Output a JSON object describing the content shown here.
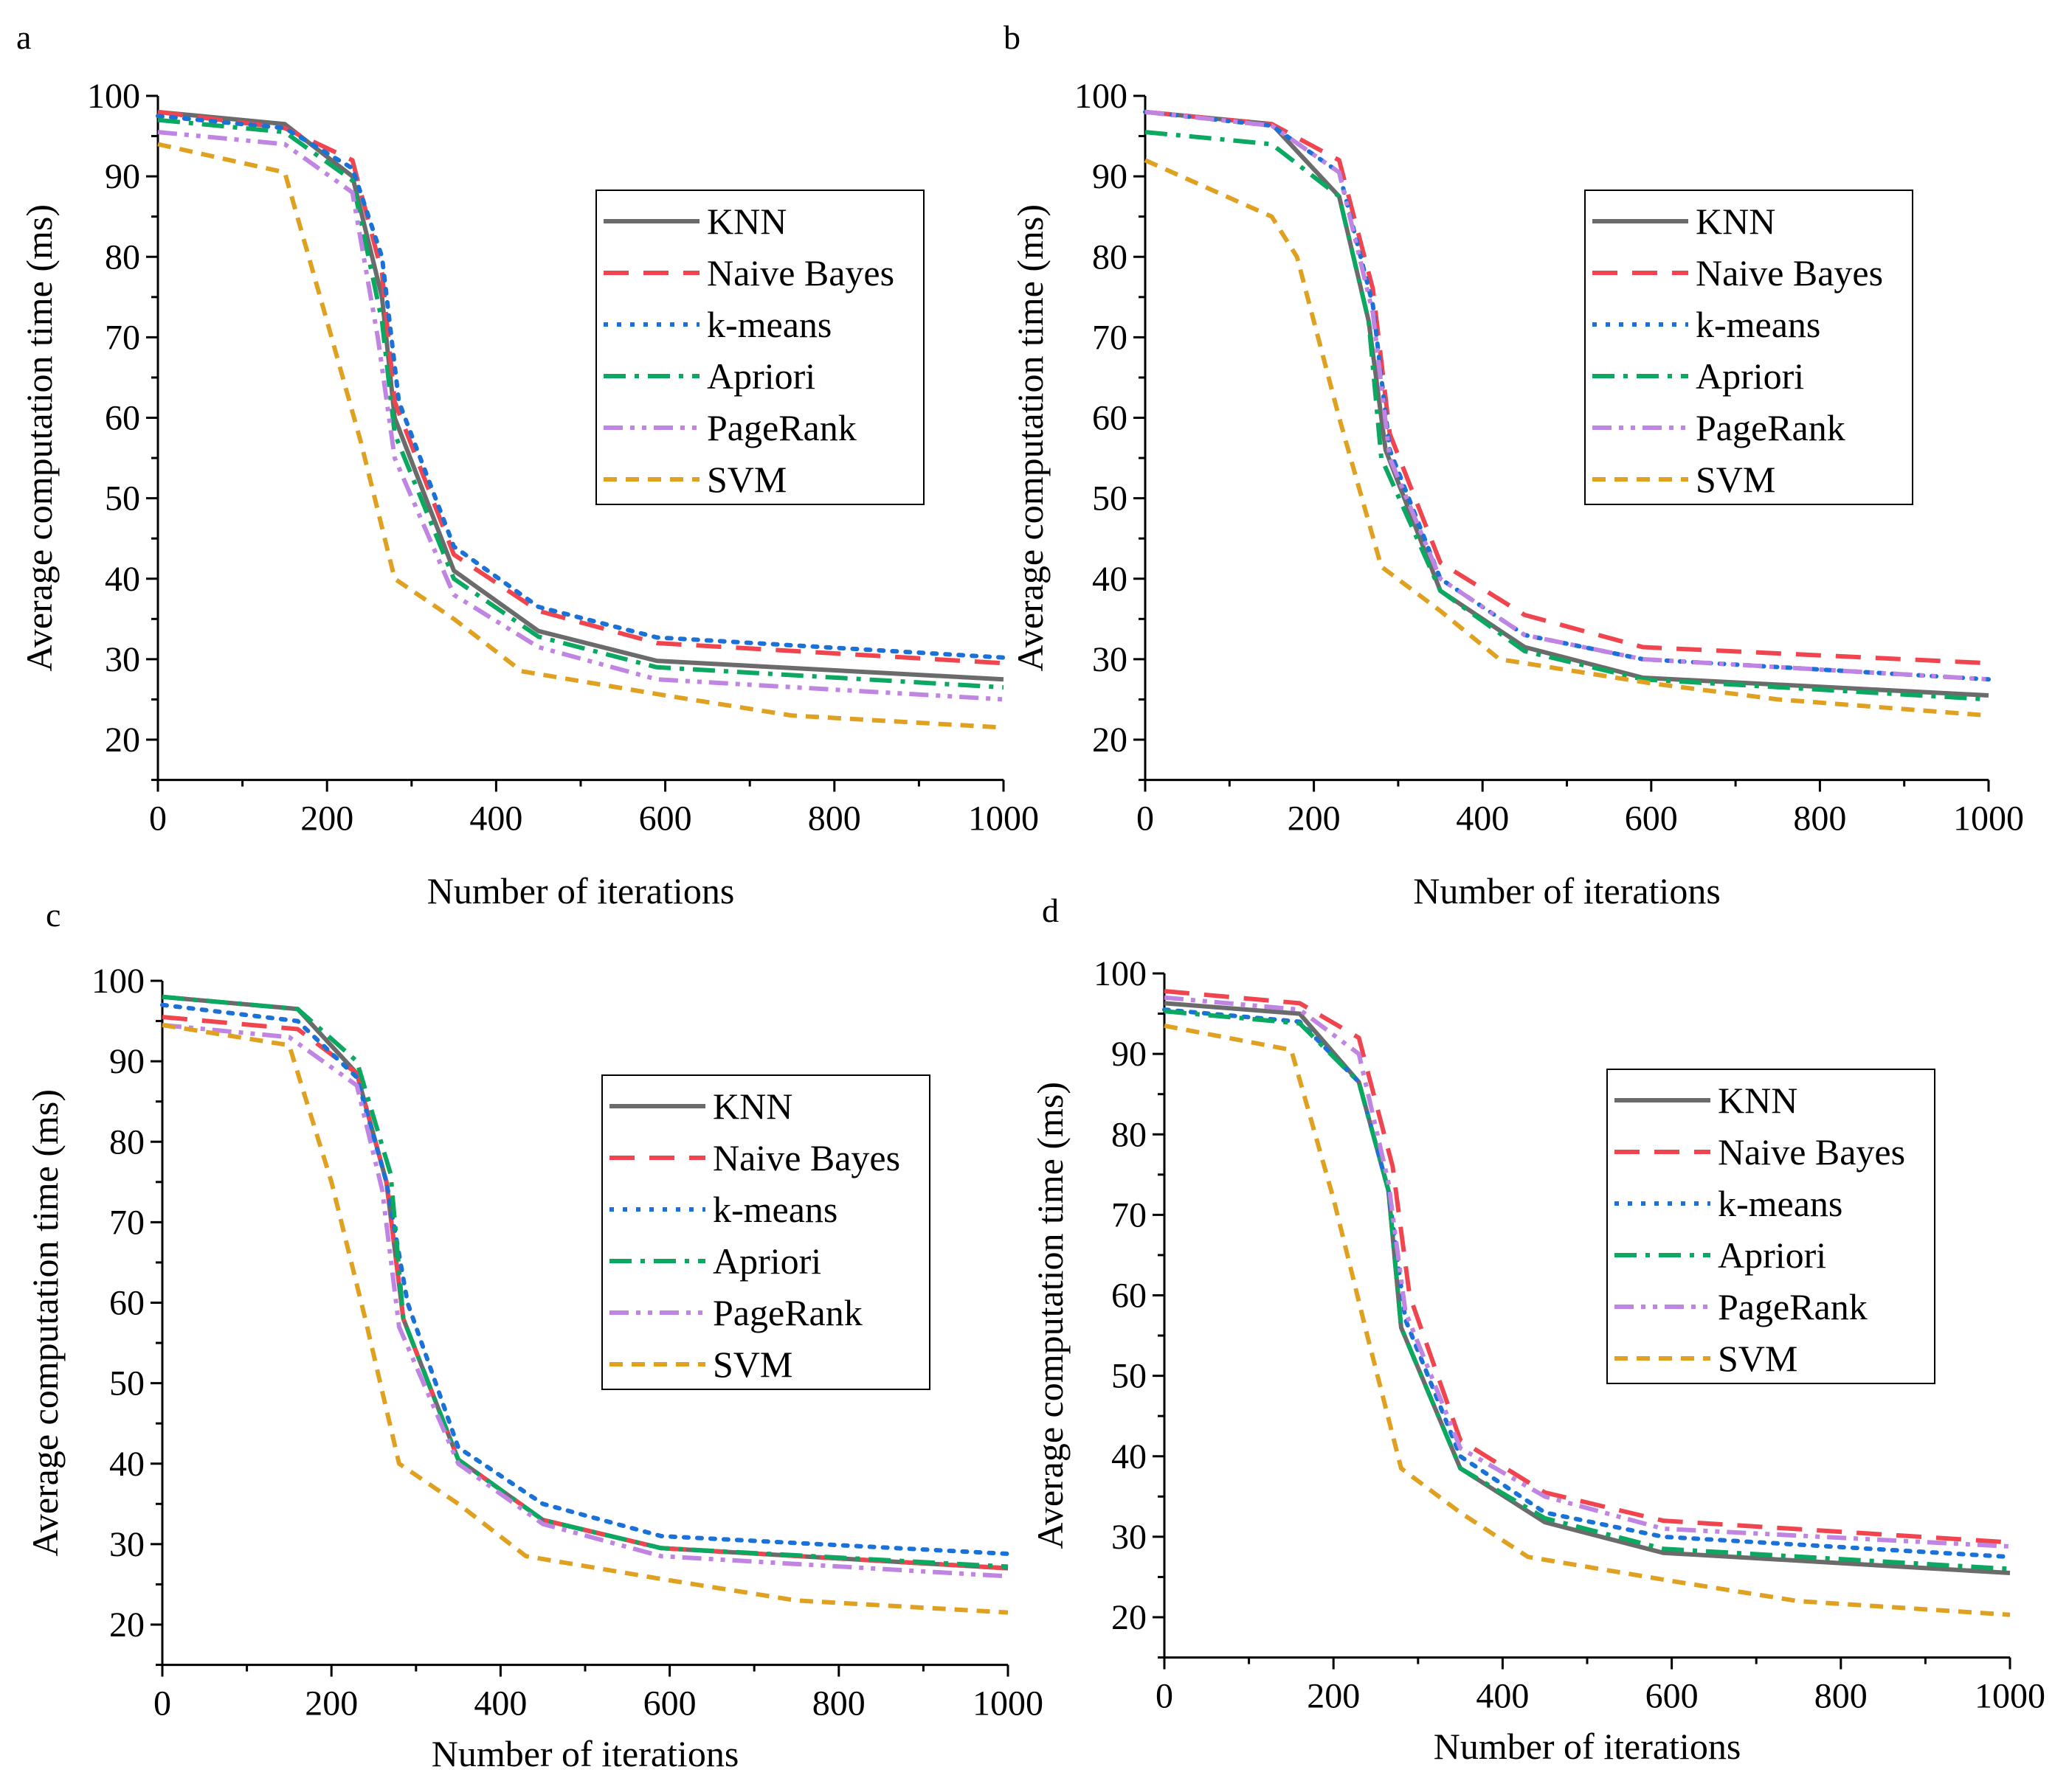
{
  "series_styles": [
    {
      "name": "KNN",
      "color": "#6b6b6b",
      "dash": "solid"
    },
    {
      "name": "Naive Bayes",
      "color": "#f0454f",
      "dash": "dash"
    },
    {
      "name": "k-means",
      "color": "#1a72d8",
      "dash": "dot"
    },
    {
      "name": "Apriori",
      "color": "#0aa860",
      "dash": "dashdot"
    },
    {
      "name": "PageRank",
      "color": "#c084e3",
      "dash": "dashdotdot"
    },
    {
      "name": "SVM",
      "color": "#e0a020",
      "dash": "shortdash"
    }
  ],
  "chart_data": [
    {
      "panel": "a",
      "type": "line",
      "xlabel": "Number of iterations",
      "ylabel": "Average computation time (ms)",
      "xlim": [
        0,
        1000
      ],
      "ylim": [
        15,
        100
      ],
      "xticks": [
        0,
        200,
        400,
        600,
        800,
        1000
      ],
      "yticks": [
        20,
        30,
        40,
        50,
        60,
        70,
        80,
        90,
        100
      ],
      "legend_position": "upper-right",
      "series": [
        {
          "name": "KNN",
          "x": [
            0,
            150,
            230,
            265,
            280,
            350,
            450,
            590,
            1000
          ],
          "y": [
            98,
            96.5,
            90,
            75,
            60,
            41,
            33.5,
            29.8,
            27.5
          ]
        },
        {
          "name": "Naive Bayes",
          "x": [
            0,
            150,
            230,
            265,
            280,
            350,
            450,
            590,
            1000
          ],
          "y": [
            98,
            96,
            92,
            78,
            62,
            43,
            36,
            32,
            29.5
          ]
        },
        {
          "name": "k-means",
          "x": [
            0,
            150,
            230,
            265,
            285,
            350,
            450,
            590,
            1000
          ],
          "y": [
            97.5,
            96,
            91,
            80,
            62,
            44,
            36.5,
            32.7,
            30.2
          ]
        },
        {
          "name": "Apriori",
          "x": [
            0,
            150,
            230,
            265,
            280,
            350,
            450,
            590,
            1000
          ],
          "y": [
            97,
            95.5,
            89.5,
            72,
            58,
            40,
            32.8,
            29,
            26.5
          ]
        },
        {
          "name": "PageRank",
          "x": [
            0,
            150,
            230,
            260,
            280,
            350,
            450,
            590,
            1000
          ],
          "y": [
            95.5,
            94,
            88,
            70,
            55,
            38,
            31.5,
            27.5,
            25
          ]
        },
        {
          "name": "SVM",
          "x": [
            0,
            150,
            200,
            240,
            280,
            350,
            430,
            600,
            750,
            1000
          ],
          "y": [
            94,
            90.5,
            72,
            57,
            40,
            35,
            28.5,
            25.5,
            23,
            21.5
          ]
        }
      ]
    },
    {
      "panel": "b",
      "type": "line",
      "xlabel": "Number of iterations",
      "ylabel": "Average computation time (ms)",
      "xlim": [
        0,
        1000
      ],
      "ylim": [
        15,
        100
      ],
      "xticks": [
        0,
        200,
        400,
        600,
        800,
        1000
      ],
      "yticks": [
        20,
        30,
        40,
        50,
        60,
        70,
        80,
        90,
        100
      ],
      "legend_position": "upper-right",
      "series": [
        {
          "name": "KNN",
          "x": [
            0,
            150,
            230,
            265,
            285,
            350,
            450,
            590,
            1000
          ],
          "y": [
            98,
            96.5,
            87.5,
            72,
            56,
            38.5,
            31.5,
            27.7,
            25.5
          ]
        },
        {
          "name": "Naive Bayes",
          "x": [
            0,
            150,
            230,
            270,
            290,
            350,
            450,
            590,
            1000
          ],
          "y": [
            98,
            96.5,
            92,
            76,
            58,
            42,
            35.5,
            31.5,
            29.5
          ]
        },
        {
          "name": "k-means",
          "x": [
            0,
            150,
            230,
            270,
            290,
            350,
            450,
            590,
            1000
          ],
          "y": [
            98,
            96.3,
            90.5,
            74,
            56,
            40,
            33,
            30,
            27.5
          ]
        },
        {
          "name": "Apriori",
          "x": [
            0,
            150,
            230,
            265,
            280,
            350,
            450,
            590,
            1000
          ],
          "y": [
            95.5,
            94,
            87.5,
            72,
            55,
            38.5,
            31,
            27.5,
            25
          ]
        },
        {
          "name": "PageRank",
          "x": [
            0,
            150,
            230,
            270,
            290,
            350,
            450,
            590,
            1000
          ],
          "y": [
            98,
            96.3,
            90.5,
            73,
            55,
            40,
            33,
            30,
            27.5
          ]
        },
        {
          "name": "SVM",
          "x": [
            0,
            150,
            180,
            230,
            280,
            350,
            420,
            600,
            750,
            1000
          ],
          "y": [
            92,
            85,
            80,
            60,
            41.5,
            36,
            30,
            27,
            25,
            23
          ]
        }
      ]
    },
    {
      "panel": "c",
      "type": "line",
      "xlabel": "Number of iterations",
      "ylabel": "Average computation time (ms)",
      "xlim": [
        0,
        1000
      ],
      "ylim": [
        15,
        100
      ],
      "xticks": [
        0,
        200,
        400,
        600,
        800,
        1000
      ],
      "yticks": [
        20,
        30,
        40,
        50,
        60,
        70,
        80,
        90,
        100
      ],
      "legend_position": "upper-right",
      "series": [
        {
          "name": "KNN",
          "x": [
            0,
            160,
            230,
            265,
            285,
            350,
            450,
            590,
            1000
          ],
          "y": [
            98,
            96.5,
            88.5,
            75,
            58,
            40.5,
            33,
            29.5,
            27
          ]
        },
        {
          "name": "Naive Bayes",
          "x": [
            0,
            160,
            230,
            265,
            285,
            350,
            450,
            590,
            1000
          ],
          "y": [
            95.5,
            94,
            88.5,
            75,
            58,
            40.5,
            33,
            29.5,
            27
          ]
        },
        {
          "name": "k-means",
          "x": [
            0,
            160,
            230,
            265,
            290,
            350,
            450,
            590,
            1000
          ],
          "y": [
            97,
            95,
            88,
            75,
            60,
            42,
            35,
            31,
            28.8
          ]
        },
        {
          "name": "Apriori",
          "x": [
            0,
            160,
            230,
            270,
            285,
            350,
            450,
            590,
            1000
          ],
          "y": [
            98,
            96.5,
            90,
            76,
            58,
            40.5,
            33,
            29.5,
            27.2
          ]
        },
        {
          "name": "PageRank",
          "x": [
            0,
            150,
            230,
            260,
            280,
            350,
            450,
            590,
            1000
          ],
          "y": [
            94.5,
            93,
            87,
            74,
            57,
            40,
            32.5,
            28.5,
            26
          ]
        },
        {
          "name": "SVM",
          "x": [
            0,
            150,
            200,
            240,
            280,
            350,
            430,
            600,
            750,
            1000
          ],
          "y": [
            94.5,
            92,
            75,
            58,
            40,
            35,
            28.5,
            25.5,
            23,
            21.5
          ]
        }
      ]
    },
    {
      "panel": "d",
      "type": "line",
      "xlabel": "Number of iterations",
      "ylabel": "Average computation time (ms)",
      "xlim": [
        0,
        1000
      ],
      "ylim": [
        15,
        100
      ],
      "xticks": [
        0,
        200,
        400,
        600,
        800,
        1000
      ],
      "yticks": [
        20,
        30,
        40,
        50,
        60,
        70,
        80,
        90,
        100
      ],
      "legend_position": "upper-right",
      "series": [
        {
          "name": "KNN",
          "x": [
            0,
            160,
            230,
            265,
            280,
            350,
            450,
            590,
            1000
          ],
          "y": [
            96.3,
            95,
            86.5,
            73,
            56,
            38.5,
            31.8,
            28,
            25.5
          ]
        },
        {
          "name": "Naive Bayes",
          "x": [
            0,
            160,
            230,
            270,
            290,
            350,
            450,
            590,
            1000
          ],
          "y": [
            97.8,
            96.3,
            92,
            76,
            60,
            42,
            35.5,
            32,
            29.3
          ]
        },
        {
          "name": "k-means",
          "x": [
            0,
            160,
            230,
            265,
            285,
            350,
            450,
            590,
            1000
          ],
          "y": [
            95.5,
            94,
            86.5,
            73,
            57,
            40,
            33,
            30,
            27.5
          ]
        },
        {
          "name": "Apriori",
          "x": [
            0,
            160,
            230,
            265,
            280,
            350,
            450,
            590,
            1000
          ],
          "y": [
            95.3,
            93.8,
            86.5,
            73,
            56,
            38.5,
            32.3,
            28.5,
            26
          ]
        },
        {
          "name": "PageRank",
          "x": [
            0,
            160,
            230,
            265,
            285,
            350,
            450,
            590,
            1000
          ],
          "y": [
            97,
            95.5,
            90,
            74,
            58,
            41,
            35,
            31,
            28.8
          ]
        },
        {
          "name": "SVM",
          "x": [
            0,
            150,
            200,
            240,
            280,
            350,
            430,
            600,
            750,
            1000
          ],
          "y": [
            93.5,
            90.5,
            72,
            55,
            38.5,
            33,
            27.5,
            24.5,
            22,
            20.3
          ]
        }
      ]
    }
  ]
}
